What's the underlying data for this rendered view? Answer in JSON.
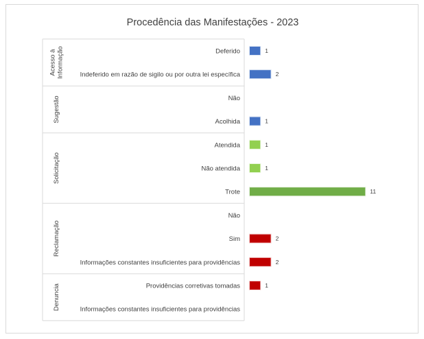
{
  "chart_data": {
    "type": "bar",
    "orientation": "horizontal",
    "title": "Procedência das Manifestações - 2023",
    "groups": [
      {
        "name": "Acesso à Informação",
        "label_lines": [
          "Acesso à",
          "Informação"
        ],
        "color": "#4472c4",
        "items": [
          {
            "label": "Deferido",
            "value": 1
          },
          {
            "label": "Indeferido em razão de sigilo ou por outra lei específica",
            "value": 2
          }
        ]
      },
      {
        "name": "Sugestão",
        "label_lines": [
          "Sugestão"
        ],
        "color": "#4472c4",
        "items": [
          {
            "label": "Não",
            "value": null
          },
          {
            "label": "Acolhida",
            "value": 1
          }
        ]
      },
      {
        "name": "Solicitação",
        "label_lines": [
          "Solicitação"
        ],
        "color": "#92d050",
        "items": [
          {
            "label": "Atendida",
            "value": 1
          },
          {
            "label": "Não atendida",
            "value": 1
          },
          {
            "label": "Trote",
            "value": 11,
            "color": "#70ad47"
          }
        ]
      },
      {
        "name": "Reclamação",
        "label_lines": [
          "Reclamação"
        ],
        "color": "#c00000",
        "items": [
          {
            "label": "Não",
            "value": null
          },
          {
            "label": "Sim",
            "value": 2
          },
          {
            "label": "Informações constantes  insuficientes para providências",
            "value": 2
          }
        ]
      },
      {
        "name": "Denuncia",
        "label_lines": [
          "Denuncia"
        ],
        "color": "#c00000",
        "items": [
          {
            "label": "Providências corretivas tomadas",
            "value": 1
          },
          {
            "label": "Informações constantes  insuficientes para providências",
            "value": null
          }
        ]
      }
    ],
    "xlim": [
      0,
      11
    ],
    "gridlines": false,
    "legend": "none"
  }
}
